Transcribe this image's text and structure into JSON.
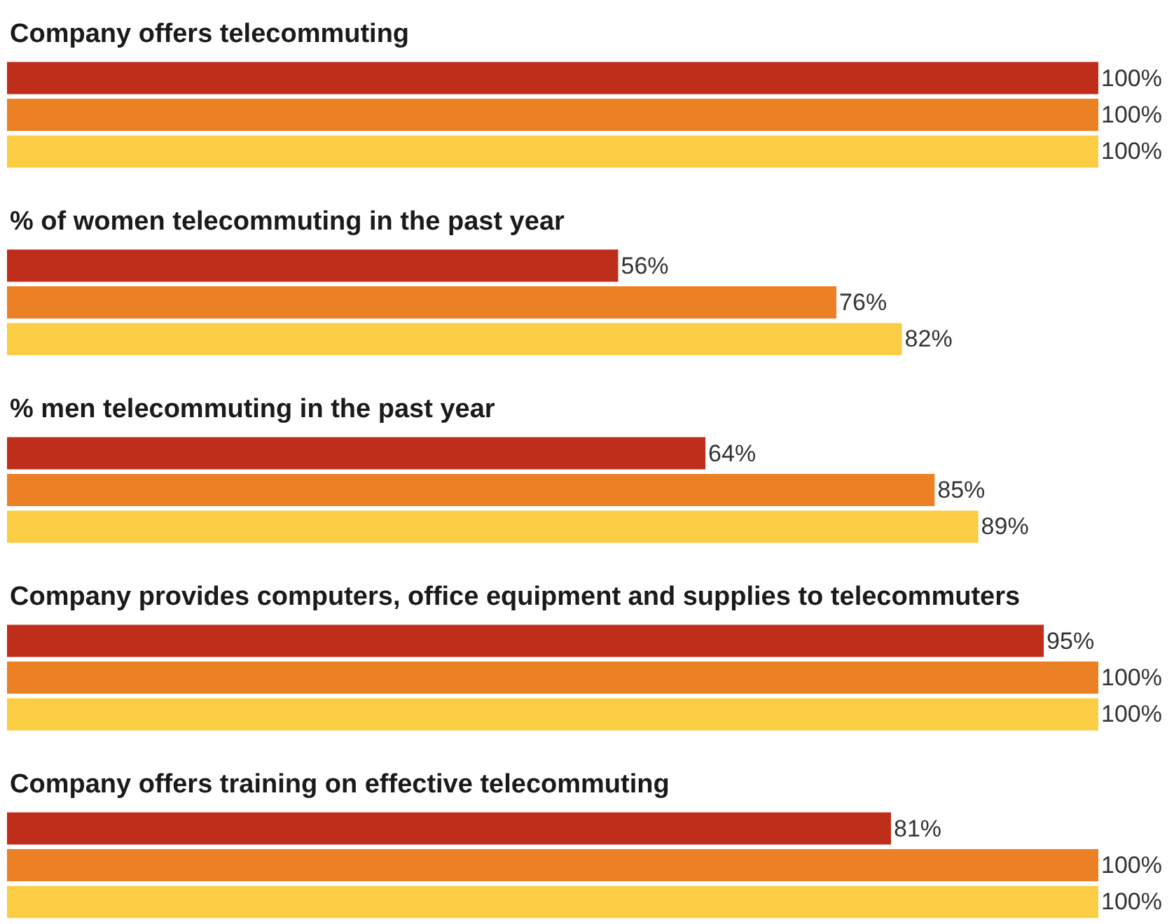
{
  "chart_data": {
    "type": "bar",
    "orientation": "horizontal",
    "categories": [
      "Company offers telecommuting",
      "% of women telecommuting in the past year",
      "% men telecommuting in the past year",
      "Company provides computers, office equipment and supplies to telecommuters",
      "Company offers training on effective telecommuting"
    ],
    "series": [
      {
        "color": "#bf2e1b",
        "values": [
          100,
          56,
          64,
          95,
          81
        ],
        "value_labels": [
          "100%",
          "56%",
          "64%",
          "95%",
          "81%"
        ]
      },
      {
        "color": "#ec8024",
        "values": [
          100,
          76,
          85,
          100,
          100
        ],
        "value_labels": [
          "100%",
          "76%",
          "85%",
          "100%",
          "100%"
        ]
      },
      {
        "color": "#fbcd45",
        "values": [
          100,
          82,
          89,
          100,
          100
        ],
        "value_labels": [
          "100%",
          "82%",
          "89%",
          "100%",
          "100%"
        ]
      }
    ]
  }
}
